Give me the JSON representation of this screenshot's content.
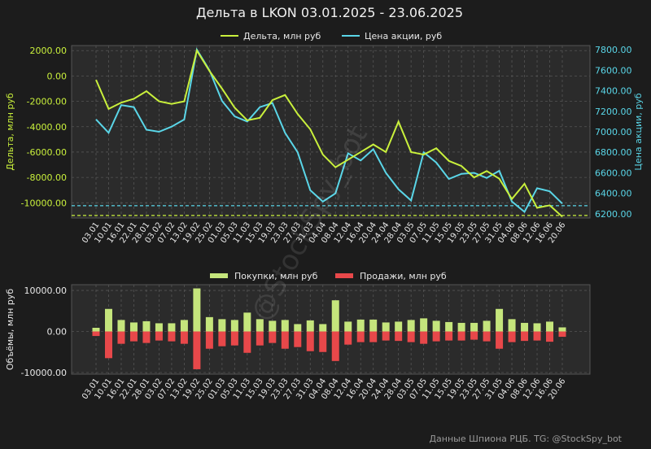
{
  "title": "Дельта в LKON 03.01.2025 - 23.06.2025",
  "footer": "Данные Шпиона РЦБ. TG: @StockSpy_bot",
  "watermark": "@StockSpy_bot",
  "colors": {
    "delta": "#c9f03c",
    "price": "#5ad6e8",
    "buy": "#c5e57c",
    "sell": "#e8484a",
    "bg": "#1c1c1c",
    "plot_bg": "#2b2b2b"
  },
  "dates": [
    "03.01",
    "10.01",
    "16.01",
    "22.01",
    "28.01",
    "03.02",
    "07.02",
    "13.02",
    "19.02",
    "25.02",
    "01.03",
    "05.03",
    "11.03",
    "15.03",
    "19.03",
    "23.03",
    "27.03",
    "31.03",
    "04.04",
    "08.04",
    "12.04",
    "16.04",
    "20.04",
    "24.04",
    "28.04",
    "03.05",
    "07.05",
    "11.05",
    "15.05",
    "19.05",
    "23.05",
    "27.05",
    "31.05",
    "04.06",
    "08.06",
    "12.06",
    "16.06",
    "20.06"
  ],
  "chart_data": [
    {
      "type": "line",
      "title": "Дельта в LKON 03.01.2025 - 23.06.2025",
      "x": "dates",
      "series": [
        {
          "name": "Дельта, млн руб",
          "axis": "left",
          "values": [
            -300,
            -2600,
            -2100,
            -1800,
            -1200,
            -2000,
            -2200,
            -2000,
            2000,
            400,
            -1000,
            -2500,
            -3500,
            -3300,
            -1900,
            -1500,
            -3000,
            -4200,
            -6200,
            -7200,
            -6600,
            -6000,
            -5400,
            -6000,
            -3600,
            -6000,
            -6200,
            -5700,
            -6700,
            -7100,
            -8000,
            -7500,
            -8100,
            -9700,
            -8500,
            -10400,
            -10200,
            -11100
          ]
        },
        {
          "name": "Цена акции, руб",
          "axis": "right",
          "values": [
            7120,
            6990,
            7260,
            7240,
            7020,
            7000,
            7050,
            7120,
            7800,
            7600,
            7300,
            7150,
            7100,
            7240,
            7280,
            6990,
            6800,
            6430,
            6320,
            6400,
            6790,
            6720,
            6830,
            6600,
            6440,
            6330,
            6800,
            6700,
            6540,
            6590,
            6600,
            6550,
            6620,
            6320,
            6220,
            6450,
            6420,
            6300
          ]
        }
      ],
      "ylabel_left": "Дельта, млн руб",
      "ylabel_right": "Цена акции, руб",
      "yticks_left": [
        "2000.00",
        "0.00",
        "-2000.00",
        "-4000.00",
        "-6000.00",
        "-8000.00",
        "-10000.00"
      ],
      "yticks_right": [
        "7800.00",
        "7600.00",
        "7400.00",
        "7200.00",
        "7000.00",
        "6800.00",
        "6600.00",
        "6400.00",
        "6200.00"
      ],
      "ylim_left": [
        -11200,
        2400
      ],
      "ylim_right": [
        6160,
        7840
      ],
      "hlines": [
        {
          "series": "price",
          "value": 6280
        },
        {
          "series": "delta",
          "value": -11000
        }
      ],
      "grid": true,
      "legend": "top-center"
    },
    {
      "type": "bar",
      "x": "dates",
      "series": [
        {
          "name": "Покупки, млн руб",
          "values": [
            900,
            5500,
            2800,
            2200,
            2500,
            2000,
            2000,
            2800,
            10500,
            3500,
            3000,
            2800,
            4600,
            3000,
            2600,
            2800,
            1800,
            2700,
            1800,
            7600,
            2400,
            2900,
            2900,
            2200,
            2400,
            2800,
            3200,
            2600,
            2300,
            2100,
            2100,
            2600,
            5500,
            3000,
            2100,
            2000,
            2400,
            1000
          ]
        },
        {
          "name": "Продажи, млн руб",
          "values": [
            -1100,
            -6500,
            -3000,
            -2400,
            -2800,
            -2200,
            -2400,
            -3000,
            -9200,
            -4200,
            -3600,
            -3400,
            -5200,
            -3400,
            -2800,
            -4200,
            -3800,
            -4800,
            -5000,
            -7200,
            -3200,
            -2600,
            -2600,
            -2200,
            -2300,
            -2600,
            -3000,
            -2400,
            -2200,
            -2200,
            -2000,
            -2400,
            -4200,
            -2600,
            -2300,
            -2200,
            -2500,
            -1300
          ]
        }
      ],
      "ylabel": "Объёмы, млн руб",
      "yticks": [
        "10000.00",
        "0.00",
        "-10000.00"
      ],
      "ylim": [
        -10400,
        11400
      ],
      "grid": true,
      "legend": "top-center"
    }
  ]
}
